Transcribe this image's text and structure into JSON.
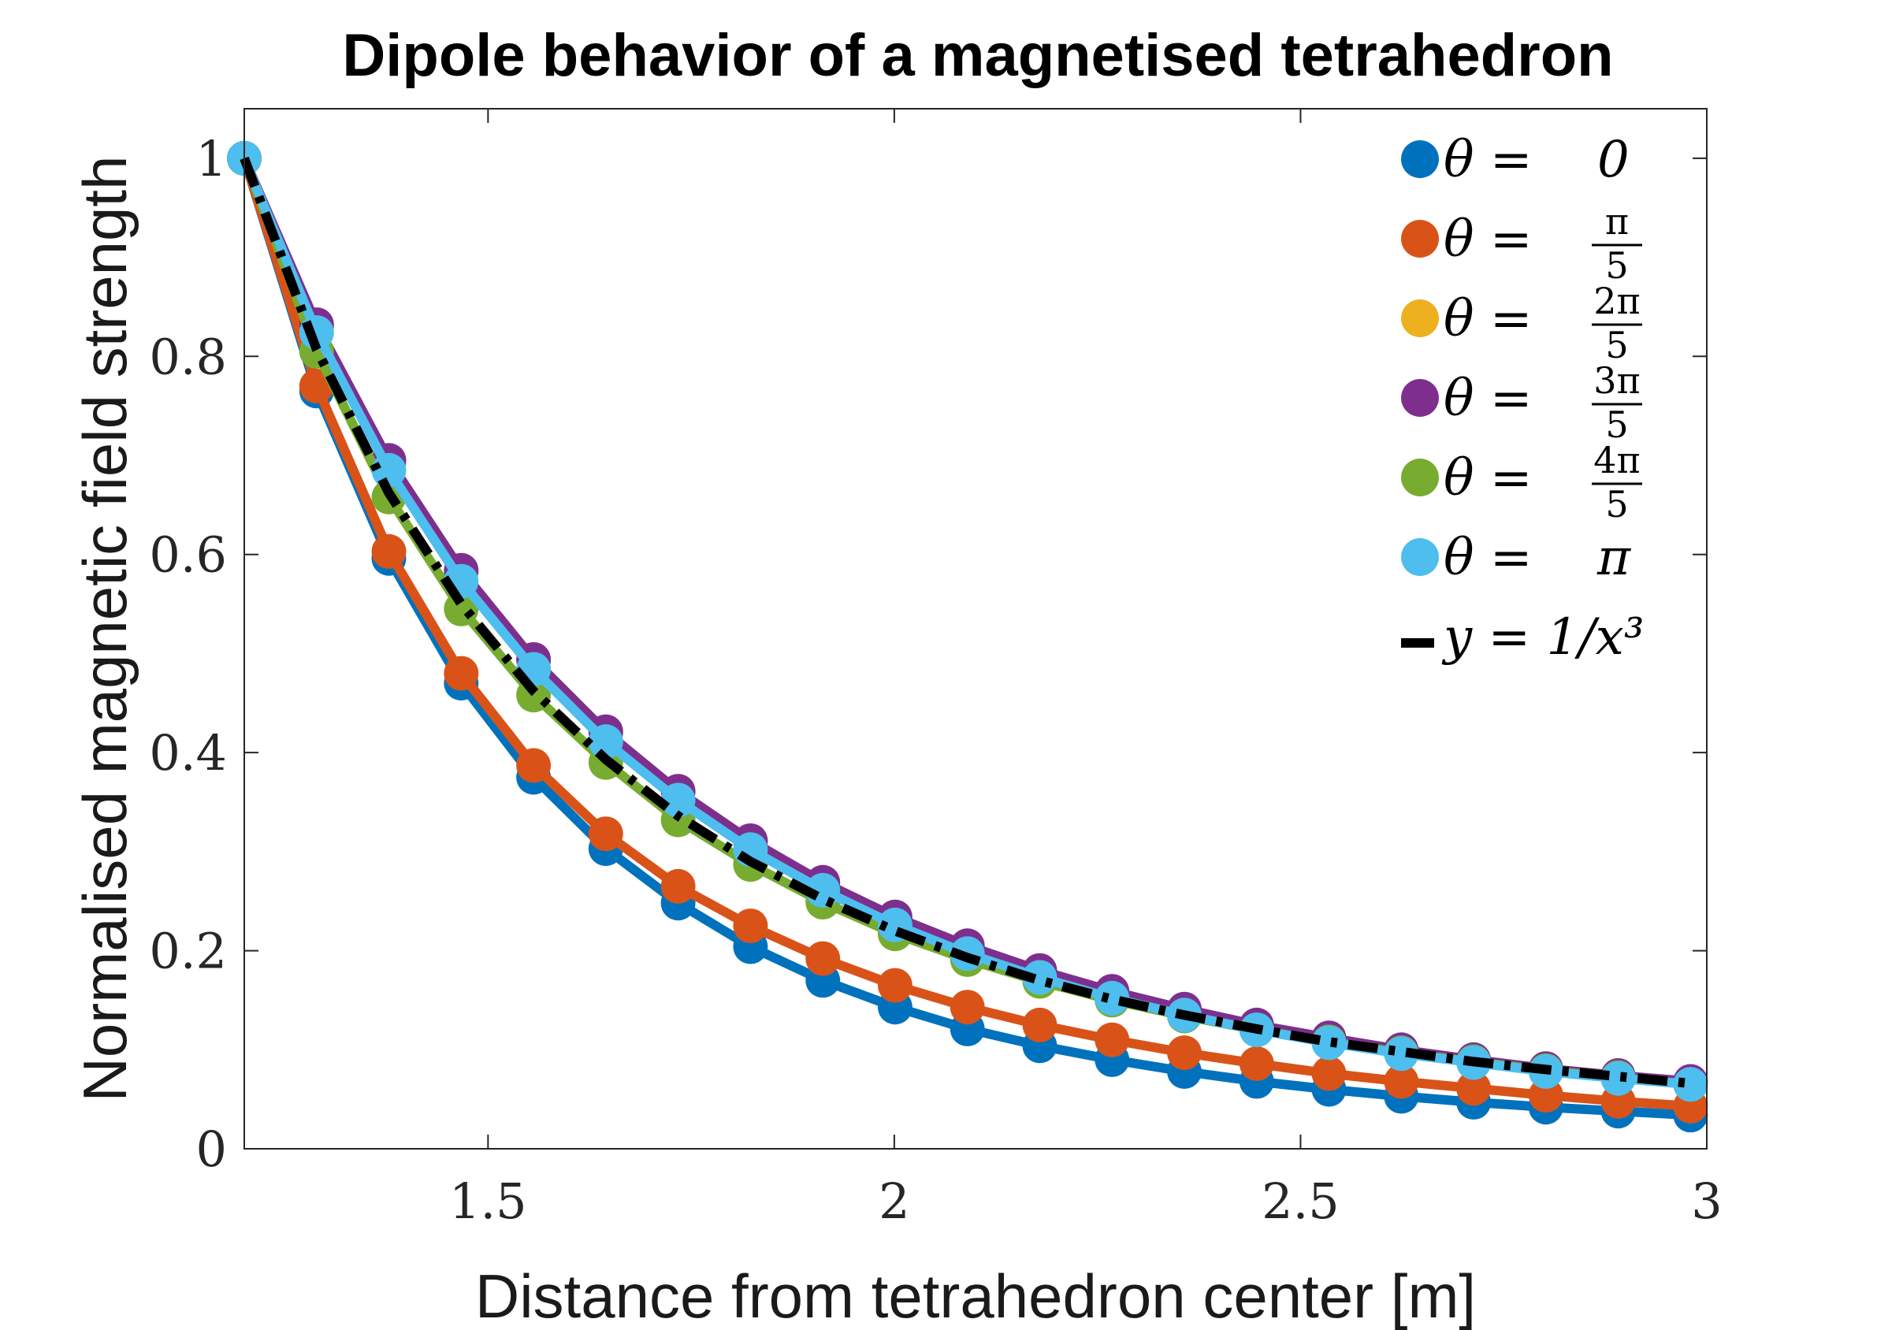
{
  "chart_data": {
    "type": "line",
    "title": "Dipole behavior of a magnetised tetrahedron",
    "xlabel": "Distance from tetrahedron center [m]",
    "ylabel": "Normalised magnetic field strength",
    "xlim": [
      1.2,
      3.0
    ],
    "ylim": [
      0,
      1.05
    ],
    "xticks": [
      1.5,
      2,
      2.5,
      3
    ],
    "xtick_labels": [
      "1.5",
      "2",
      "2.5",
      "3"
    ],
    "yticks": [
      0,
      0.2,
      0.4,
      0.6,
      0.8,
      1
    ],
    "ytick_labels": [
      "0",
      "0.2",
      "0.4",
      "0.6",
      "0.8",
      "1"
    ],
    "grid": false,
    "legend_position": "top-right",
    "x": [
      1.2,
      1.289,
      1.378,
      1.467,
      1.556,
      1.645,
      1.734,
      1.823,
      1.912,
      2.001,
      2.09,
      2.179,
      2.268,
      2.357,
      2.446,
      2.535,
      2.624,
      2.713,
      2.802,
      2.891,
      2.98
    ],
    "series": [
      {
        "name": "θ = 0",
        "name_prefix": "θ =",
        "name_num": "0",
        "name_den": "",
        "color": "#0072BD",
        "marker": "circle",
        "values": [
          1.0,
          0.765,
          0.596,
          0.47,
          0.375,
          0.303,
          0.248,
          0.204,
          0.17,
          0.143,
          0.121,
          0.104,
          0.09,
          0.078,
          0.068,
          0.06,
          0.053,
          0.047,
          0.042,
          0.038,
          0.034
        ]
      },
      {
        "name": "θ = π/5",
        "name_prefix": "θ =",
        "name_num": "π",
        "name_den": "5",
        "color": "#D95319",
        "marker": "circle",
        "values": [
          1.0,
          0.77,
          0.603,
          0.48,
          0.387,
          0.318,
          0.265,
          0.225,
          0.192,
          0.165,
          0.143,
          0.125,
          0.11,
          0.097,
          0.086,
          0.076,
          0.068,
          0.061,
          0.054,
          0.048,
          0.043
        ]
      },
      {
        "name": "θ = 2π/5",
        "name_prefix": "θ =",
        "name_num": "2π",
        "name_den": "5",
        "color": "#EDB120",
        "marker": "circle",
        "values": [
          1.0,
          0.829,
          0.692,
          0.582,
          0.493,
          0.42,
          0.36,
          0.31,
          0.268,
          0.233,
          0.204,
          0.179,
          0.158,
          0.139,
          0.124,
          0.111,
          0.099,
          0.089,
          0.08,
          0.073,
          0.066
        ]
      },
      {
        "name": "θ = 3π/5",
        "name_prefix": "θ =",
        "name_num": "3π",
        "name_den": "5",
        "color": "#7E2F8E",
        "marker": "circle",
        "values": [
          1.0,
          0.832,
          0.695,
          0.584,
          0.494,
          0.421,
          0.361,
          0.311,
          0.269,
          0.234,
          0.205,
          0.18,
          0.159,
          0.141,
          0.125,
          0.112,
          0.1,
          0.09,
          0.081,
          0.074,
          0.068
        ]
      },
      {
        "name": "θ = 4π/5",
        "name_prefix": "θ =",
        "name_num": "4π",
        "name_den": "5",
        "color": "#77AC30",
        "marker": "circle",
        "values": [
          1.0,
          0.805,
          0.658,
          0.545,
          0.458,
          0.39,
          0.332,
          0.287,
          0.249,
          0.217,
          0.191,
          0.169,
          0.15,
          0.134,
          0.12,
          0.108,
          0.097,
          0.088,
          0.079,
          0.072,
          0.065
        ]
      },
      {
        "name": "θ = π",
        "name_prefix": "θ =",
        "name_num": "π",
        "name_den": "",
        "color": "#4DBEEE",
        "marker": "circle",
        "values": [
          1.0,
          0.824,
          0.685,
          0.573,
          0.484,
          0.411,
          0.352,
          0.302,
          0.261,
          0.226,
          0.197,
          0.173,
          0.152,
          0.135,
          0.12,
          0.107,
          0.096,
          0.087,
          0.078,
          0.071,
          0.065
        ]
      },
      {
        "name": "y = 1/x³",
        "name_prefix": "y = 1/x³",
        "name_num": "",
        "name_den": "",
        "color": "#000000",
        "marker": "none",
        "style": "dashdot",
        "values": [
          1.0,
          0.807,
          0.662,
          0.55,
          0.462,
          0.393,
          0.336,
          0.29,
          0.252,
          0.22,
          0.193,
          0.17,
          0.151,
          0.135,
          0.121,
          0.108,
          0.098,
          0.088,
          0.08,
          0.073,
          0.066
        ]
      }
    ]
  }
}
